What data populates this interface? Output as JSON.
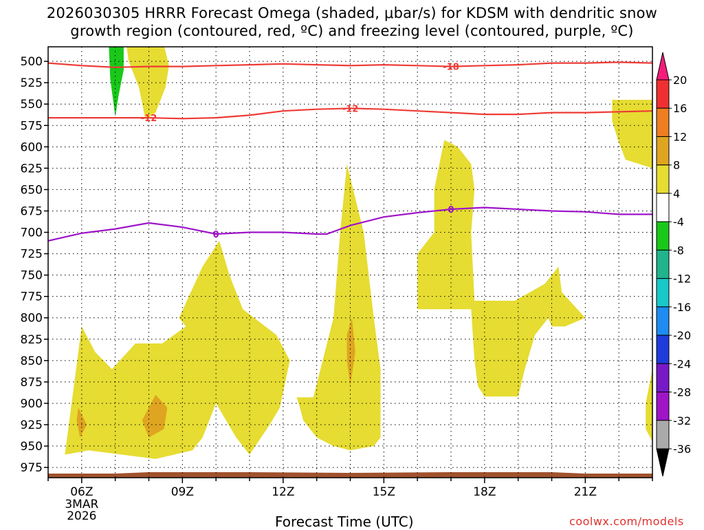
{
  "title_lines": [
    "2026030305 HRRR Forecast Omega (shaded, μbar/s) for KDSM with dendritic snow",
    "growth region (contoured, red, ºC) and freezing level (contoured, purple, ºC)"
  ],
  "xlabel": "Forecast Time (UTC)",
  "credit": "coolwx.com/models",
  "chart_data": {
    "type": "heatmap",
    "title": "2026030305 HRRR Forecast Omega (shaded, μbar/s) for KDSM with dendritic snow growth region (contoured, red, ºC) and freezing level (contoured, purple, ºC)",
    "xlabel": "Forecast Time (UTC)",
    "ylabel": "",
    "x_range_hours": [
      5,
      23
    ],
    "x_ticks": [
      {
        "hour": 6,
        "label": "06Z"
      },
      {
        "hour": 9,
        "label": "09Z"
      },
      {
        "hour": 12,
        "label": "12Z"
      },
      {
        "hour": 15,
        "label": "15Z"
      },
      {
        "hour": 18,
        "label": "18Z"
      },
      {
        "hour": 21,
        "label": "21Z"
      }
    ],
    "date_label": [
      "3MAR",
      "2026"
    ],
    "y_range_mb": [
      987,
      483
    ],
    "y_ticks": [
      500,
      525,
      550,
      575,
      600,
      625,
      650,
      675,
      700,
      725,
      750,
      775,
      800,
      825,
      850,
      875,
      900,
      925,
      950,
      975
    ],
    "grid": true,
    "colorbar": {
      "ticks": [
        20,
        16,
        12,
        8,
        4,
        -4,
        -8,
        -12,
        -16,
        -20,
        -24,
        -28,
        -32,
        -36
      ],
      "colors": [
        "#f41d7a",
        "#f03030",
        "#ee7e20",
        "#dfa520",
        "#e6dc32",
        "#ffffff",
        "#19c819",
        "#20b48c",
        "#19c8c8",
        "#1e8cf0",
        "#1e3cdc",
        "#7819c8",
        "#a014c8",
        "#aaaaaa",
        "#000000"
      ],
      "cap_top_color": "#f41d7a",
      "cap_bottom_color": "#000000"
    },
    "contours": [
      {
        "name": "-18",
        "color": "#ee3b36",
        "label_at": {
          "hour": 17.0,
          "value": "-18"
        },
        "points": [
          [
            5,
            502
          ],
          [
            6,
            505
          ],
          [
            7,
            507
          ],
          [
            8,
            506
          ],
          [
            9,
            506
          ],
          [
            10,
            505
          ],
          [
            11,
            504
          ],
          [
            12,
            503
          ],
          [
            13,
            504
          ],
          [
            14,
            505
          ],
          [
            15,
            504
          ],
          [
            16,
            505
          ],
          [
            17,
            506
          ],
          [
            18,
            505
          ],
          [
            19,
            504
          ],
          [
            20,
            502
          ],
          [
            21,
            502
          ],
          [
            22,
            501
          ],
          [
            23,
            502
          ]
        ]
      },
      {
        "name": "-12",
        "color": "#ee3b36",
        "label_at": {
          "hour": 8.0,
          "value": "-12"
        },
        "label2_at": {
          "hour": 14.0,
          "value": "-12"
        },
        "points": [
          [
            5,
            566
          ],
          [
            6,
            566
          ],
          [
            7,
            566
          ],
          [
            8,
            566
          ],
          [
            9,
            567
          ],
          [
            10,
            566
          ],
          [
            11,
            563
          ],
          [
            12,
            558
          ],
          [
            13,
            556
          ],
          [
            14,
            555
          ],
          [
            15,
            556
          ],
          [
            16,
            558
          ],
          [
            17,
            560
          ],
          [
            18,
            562
          ],
          [
            19,
            562
          ],
          [
            20,
            560
          ],
          [
            21,
            560
          ],
          [
            22,
            559
          ],
          [
            23,
            558
          ]
        ]
      },
      {
        "name": "0",
        "color": "#9e14c8",
        "label_at": {
          "hour": 10.0,
          "value": "0"
        },
        "label2_at": {
          "hour": 17.0,
          "value": "0"
        },
        "points": [
          [
            5,
            710
          ],
          [
            6,
            701
          ],
          [
            7,
            696
          ],
          [
            8,
            689
          ],
          [
            9,
            694
          ],
          [
            10,
            702
          ],
          [
            11,
            700
          ],
          [
            12,
            700
          ],
          [
            13,
            702
          ],
          [
            13.3,
            702
          ],
          [
            14,
            692
          ],
          [
            15,
            682
          ],
          [
            16,
            677
          ],
          [
            17,
            673
          ],
          [
            18,
            671
          ],
          [
            19,
            673
          ],
          [
            20,
            675
          ],
          [
            21,
            676
          ],
          [
            22,
            679
          ],
          [
            23,
            679
          ]
        ]
      }
    ],
    "omega_regions": [
      {
        "level": "yellow (4 to 8)",
        "color": "#e6dc32",
        "points": [
          [
            5.5,
            960
          ],
          [
            6.0,
            810
          ],
          [
            6.4,
            840
          ],
          [
            6.9,
            860
          ],
          [
            7.6,
            830
          ],
          [
            8.4,
            830
          ],
          [
            9.1,
            810
          ],
          [
            8.9,
            800
          ],
          [
            9.6,
            740
          ],
          [
            10.1,
            710
          ],
          [
            10.4,
            750
          ],
          [
            10.8,
            790
          ],
          [
            11.8,
            820
          ],
          [
            12.2,
            850
          ],
          [
            11.9,
            905
          ],
          [
            11.6,
            925
          ],
          [
            11.0,
            960
          ],
          [
            10.6,
            940
          ],
          [
            10.0,
            900
          ],
          [
            9.6,
            940
          ],
          [
            9.3,
            955
          ],
          [
            8.2,
            965
          ],
          [
            7.2,
            960
          ],
          [
            6.2,
            955
          ],
          [
            5.5,
            960
          ]
        ]
      },
      {
        "level": "yellow (4 to 8)",
        "color": "#e6dc32",
        "points": [
          [
            12.4,
            893
          ],
          [
            12.9,
            893
          ],
          [
            13.5,
            800
          ],
          [
            13.7,
            700
          ],
          [
            13.9,
            620
          ],
          [
            14.4,
            700
          ],
          [
            14.7,
            800
          ],
          [
            14.9,
            860
          ],
          [
            14.9,
            940
          ],
          [
            14.7,
            950
          ],
          [
            14.0,
            955
          ],
          [
            13.5,
            950
          ],
          [
            13.0,
            940
          ],
          [
            12.6,
            920
          ],
          [
            12.5,
            905
          ],
          [
            12.4,
            893
          ]
        ]
      },
      {
        "level": "yellow (4 to 8)",
        "color": "#e6dc32",
        "points": [
          [
            16.0,
            725
          ],
          [
            16.5,
            700
          ],
          [
            16.5,
            650
          ],
          [
            16.8,
            592
          ],
          [
            17.2,
            600
          ],
          [
            17.6,
            620
          ],
          [
            17.7,
            650
          ],
          [
            17.6,
            700
          ],
          [
            17.7,
            780
          ],
          [
            18.9,
            780
          ],
          [
            19.8,
            760
          ],
          [
            20.2,
            740
          ],
          [
            20.3,
            770
          ],
          [
            21.0,
            800
          ],
          [
            20.4,
            810
          ],
          [
            20.0,
            810
          ],
          [
            19.9,
            800
          ],
          [
            19.5,
            820
          ],
          [
            19.2,
            860
          ],
          [
            19.0,
            892
          ],
          [
            18.0,
            892
          ],
          [
            17.8,
            880
          ],
          [
            17.7,
            850
          ],
          [
            17.6,
            790
          ],
          [
            16.0,
            790
          ],
          [
            16.0,
            725
          ]
        ]
      },
      {
        "level": "yellow (4 to 8)",
        "color": "#e6dc32",
        "points": [
          [
            7.3,
            473
          ],
          [
            8.0,
            473
          ],
          [
            8.4,
            473
          ],
          [
            8.6,
            505
          ],
          [
            8.5,
            530
          ],
          [
            8.2,
            560
          ],
          [
            7.9,
            568
          ],
          [
            7.7,
            530
          ],
          [
            7.4,
            500
          ],
          [
            7.3,
            473
          ]
        ]
      },
      {
        "level": "yellow (4 to 8)",
        "color": "#e6dc32",
        "points": [
          [
            21.8,
            545
          ],
          [
            23,
            545
          ],
          [
            23,
            625
          ],
          [
            22.2,
            615
          ],
          [
            22.0,
            595
          ],
          [
            21.8,
            570
          ],
          [
            21.8,
            545
          ]
        ]
      },
      {
        "level": "yellow (4 to 8)",
        "color": "#e6dc32",
        "points": [
          [
            23.0,
            860
          ],
          [
            22.8,
            900
          ],
          [
            22.8,
            930
          ],
          [
            23.0,
            945
          ],
          [
            23.0,
            860
          ]
        ]
      },
      {
        "level": "orange (8 to 12)",
        "color": "#dfa520",
        "points": [
          [
            5.9,
            905
          ],
          [
            6.15,
            925
          ],
          [
            5.95,
            940
          ],
          [
            5.85,
            920
          ],
          [
            5.9,
            905
          ]
        ]
      },
      {
        "level": "orange (8 to 12)",
        "color": "#dfa520",
        "points": [
          [
            7.8,
            920
          ],
          [
            8.2,
            890
          ],
          [
            8.55,
            905
          ],
          [
            8.45,
            930
          ],
          [
            8.0,
            940
          ],
          [
            7.8,
            920
          ]
        ]
      },
      {
        "level": "orange (8 to 12)",
        "color": "#dfa520",
        "points": [
          [
            13.9,
            820
          ],
          [
            14.05,
            800
          ],
          [
            14.15,
            840
          ],
          [
            14.0,
            880
          ],
          [
            13.9,
            850
          ],
          [
            13.9,
            820
          ]
        ]
      },
      {
        "level": "green (-4 to -8)",
        "color": "#19c819",
        "points": [
          [
            6.8,
            473
          ],
          [
            7.25,
            473
          ],
          [
            7.25,
            510
          ],
          [
            7.1,
            540
          ],
          [
            7.0,
            565
          ],
          [
            6.85,
            520
          ],
          [
            6.8,
            473
          ]
        ]
      }
    ],
    "terrain": {
      "color": "#a0522d",
      "bottom_mb": 987
    }
  }
}
